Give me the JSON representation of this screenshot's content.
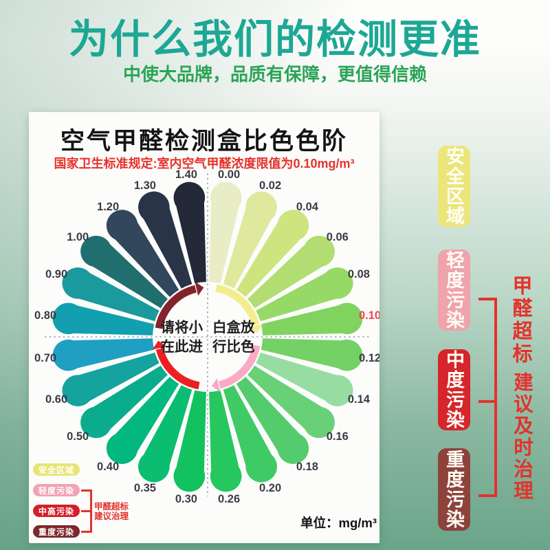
{
  "header": {
    "title": "为什么我们的检测更准",
    "subtitle": "中使大品牌，品质有保障，更值得信赖",
    "title_color": "#1da795",
    "subtitle_color": "#2ba456"
  },
  "card": {
    "title": "空气甲醛检测盒比色色阶",
    "regulation": "国家卫生标准规定:室内空气甲醛浓度限值为0.10mg/m³",
    "regulation_color": "#e63128",
    "center_text": {
      "line1_left": "请将小",
      "line1_right": "白盒放",
      "line2_left": "在此进",
      "line2_right": "行比色"
    },
    "unit_label": "单位：mg/m³",
    "legend": {
      "items": [
        {
          "label": "安全区域",
          "color": "#e9e476"
        },
        {
          "label": "轻度污染",
          "color": "#f0a3b3"
        },
        {
          "label": "中高污染",
          "color": "#d2202a"
        },
        {
          "label": "重度污染",
          "color": "#7c272b"
        }
      ],
      "note_line1": "甲醛超标",
      "note_line2": "建议治理",
      "note_color": "#e3322b"
    }
  },
  "side_panel": {
    "items": [
      {
        "label": "安全区域",
        "color": "#ece57b"
      },
      {
        "label": "轻度污染",
        "color": "#efa3ab"
      },
      {
        "label": "中度污染",
        "color": "#d6252b"
      },
      {
        "label": "重度污染",
        "color": "#8e423c"
      }
    ],
    "note_line1": "甲醛超标",
    "note_line2": "建议及时治理",
    "note_color": "#e3322b"
  },
  "chart_data": {
    "type": "pie",
    "subtype": "formaldehyde-color-comparison-wheel",
    "title": "空气甲醛检测盒比色色阶",
    "unit": "mg/m³",
    "categories": [
      "0.00",
      "0.02",
      "0.04",
      "0.06",
      "0.08",
      "0.10",
      "0.12",
      "0.14",
      "0.16",
      "0.18",
      "0.20",
      "0.26",
      "0.30",
      "0.35",
      "0.40",
      "0.50",
      "0.60",
      "0.70",
      "0.80",
      "0.90",
      "1.00",
      "1.20",
      "1.30",
      "1.40"
    ],
    "colors": [
      "#e8edc6",
      "#dfe99d",
      "#cee47f",
      "#b1dd72",
      "#97d966",
      "#81d35f",
      "#74d165",
      "#97dda1",
      "#69d078",
      "#54cc6d",
      "#40ca66",
      "#25c75e",
      "#12c25e",
      "#0abd70",
      "#03b87f",
      "#0bac8e",
      "#14a39e",
      "#1f9fc2",
      "#12a0b0",
      "#1b9a9e",
      "#206f6e",
      "#32465c",
      "#2a3447",
      "#232937"
    ],
    "label_color": "#3b3b45",
    "highlight_category": "0.10",
    "highlight_label_color": "#e8474d",
    "arcs": [
      {
        "name": "safe-zone",
        "color": "#f2ee8e",
        "from": 10,
        "to": 76
      },
      {
        "name": "light-pollution",
        "color": "#f9abc6",
        "from": 100,
        "to": 166
      },
      {
        "name": "medium-pollution",
        "color": "#ec2024",
        "from": 190,
        "to": 256
      },
      {
        "name": "heavy-pollution",
        "color": "#84222c",
        "from": 280,
        "to": 346
      }
    ],
    "geometry": {
      "center": [
        260,
        327
      ],
      "start_bearing": 7.5,
      "step": 15,
      "inner_radius": 80,
      "outer_radius": 218,
      "half_angle": 6,
      "label_radius": 238,
      "arc_radius": 72,
      "arc_width": 11
    },
    "axis_lines": {
      "color": "#9b9db5",
      "vertical": [
        89,
        559
      ],
      "horizontal": [
        23,
        495
      ]
    }
  }
}
